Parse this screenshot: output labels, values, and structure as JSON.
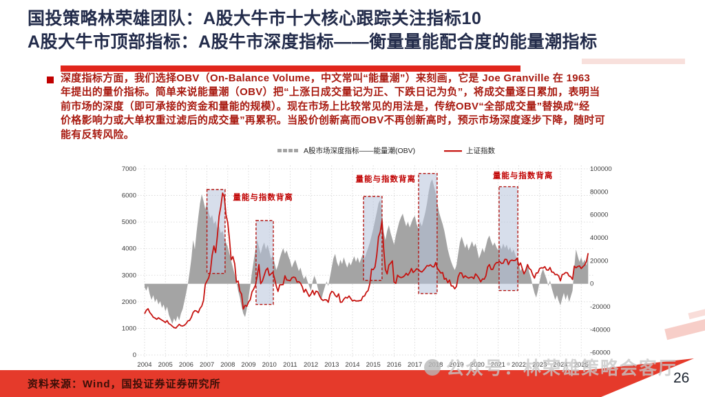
{
  "header": {
    "title_lines": [
      "国投策略林荣雄团队：A股大牛市十大核心跟踪关注指标10",
      "A股大牛市顶部指标：A股牛市深度指标——衡量量能配合度的能量潮指标"
    ]
  },
  "body": {
    "lines": [
      "深度指标方面，我们选择OBV（On-Balance Volume，中文常叫“能量潮”）来刻画，它是 Joe Granville 在 1963",
      "年提出的量价指标。简单来说能量潮（OBV）把“上涨日成交量记为正、下跌日记为负”，将成交量逐日累加，表明当",
      "前市场的深度（即可承接的资金和量能的规模）。现在市场上比较常见的用法是，传统OBV“全部成交量”替换成“经",
      "价格影响力或大单权重过滤后的成交量”再累积。当股价创新高而OBV不再创新高时，预示市场深度逐步下降，随时可",
      "能有反转风险。"
    ]
  },
  "footer": {
    "source": "资料来源：Wind，国投证券证券研究所",
    "page": "26",
    "watermark": "公众号：林荣雄策略会客厅"
  },
  "chart_data": {
    "type": "area+line combo",
    "x_start": 2004,
    "x_step_months": 1,
    "x_ticks": [
      2004,
      2005,
      2006,
      2007,
      2008,
      2009,
      2010,
      2011,
      2012,
      2013,
      2014,
      2015,
      2016,
      2017,
      2018,
      2019,
      2020,
      2021,
      2022,
      2023,
      2024,
      2025
    ],
    "ylim_left": [
      0,
      7000
    ],
    "yticks_left": [
      0,
      1000,
      2000,
      3000,
      4000,
      5000,
      6000,
      7000
    ],
    "ylim_right": [
      -62000,
      100000
    ],
    "yticks_right": [
      -60000,
      -40000,
      -20000,
      0,
      20000,
      40000,
      60000,
      80000,
      100000
    ],
    "grid": "dotted",
    "legend_position": "top-center",
    "colors": {
      "obv": "#a4a4a4",
      "sse": "#c6120f",
      "annotation": "#c00000"
    },
    "series_obv": {
      "name": "A股市场深度指标——能量潮(OBV)",
      "axis": "right",
      "values": [
        -3000,
        -6000,
        -2000,
        -9000,
        -14000,
        -10000,
        -16000,
        -13000,
        -18000,
        -15000,
        -21000,
        -18000,
        -24000,
        -20000,
        -27000,
        -31000,
        -35000,
        -30000,
        -33000,
        -28000,
        -32000,
        -26000,
        -22000,
        -15000,
        -8000,
        0,
        10000,
        22000,
        38000,
        30000,
        45000,
        58000,
        70000,
        78000,
        72000,
        65000,
        70000,
        62000,
        57000,
        60000,
        52000,
        55000,
        48000,
        50000,
        44000,
        46000,
        40000,
        36000,
        32000,
        26000,
        20000,
        14000,
        8000,
        2000,
        -6000,
        -12000,
        -20000,
        -26000,
        -29000,
        -22000,
        -12000,
        -2000,
        10000,
        20000,
        30000,
        38000,
        32000,
        26000,
        32000,
        36000,
        30000,
        34000,
        28000,
        22000,
        25000,
        18000,
        12000,
        16000,
        22000,
        27000,
        31000,
        26000,
        29000,
        24000,
        20000,
        14000,
        18000,
        21000,
        16000,
        11000,
        14000,
        8000,
        4000,
        7000,
        2000,
        -2000,
        -6000,
        2000,
        7000,
        3000,
        -4000,
        -9000,
        -14000,
        -8000,
        -3000,
        2000,
        -2000,
        6000,
        14000,
        22000,
        26000,
        19000,
        15000,
        21000,
        17000,
        23000,
        18000,
        14000,
        19000,
        16000,
        20000,
        24000,
        19000,
        23000,
        18000,
        22000,
        26000,
        22000,
        27000,
        31000,
        36000,
        42000,
        48000,
        55000,
        62000,
        70000,
        73000,
        62000,
        45000,
        38000,
        46000,
        51000,
        44000,
        39000,
        34000,
        42000,
        48000,
        54000,
        58000,
        61000,
        55000,
        50000,
        54000,
        49000,
        53000,
        57000,
        59000,
        52000,
        48000,
        54000,
        50000,
        56000,
        62000,
        70000,
        80000,
        88000,
        91000,
        85000,
        79000,
        70000,
        62000,
        57000,
        52000,
        46000,
        38000,
        30000,
        24000,
        19000,
        15000,
        12000,
        16000,
        26000,
        36000,
        41000,
        36000,
        31000,
        35000,
        29000,
        33000,
        37000,
        32000,
        35000,
        29000,
        22000,
        26000,
        31000,
        27000,
        33000,
        39000,
        42000,
        37000,
        33000,
        36000,
        32000,
        29000,
        34000,
        30000,
        35000,
        31000,
        34000,
        29000,
        32000,
        27000,
        30000,
        25000,
        21000,
        17000,
        11000,
        14000,
        8000,
        12000,
        16000,
        10000,
        5000,
        -2000,
        -8000,
        -12000,
        -6000,
        2000,
        9000,
        13000,
        8000,
        4000,
        -2000,
        3000,
        -4000,
        -9000,
        -14000,
        -10000,
        -15000,
        -19000,
        -13000,
        -8000,
        -14000,
        -9000,
        -16000,
        -11000,
        -6000,
        14000,
        30000,
        24000,
        19000,
        23000,
        18000,
        21000,
        16000,
        25000
      ]
    },
    "series_sse": {
      "name": "上证指数",
      "axis": "left",
      "values": [
        1550,
        1680,
        1740,
        1600,
        1520,
        1420,
        1390,
        1340,
        1400,
        1350,
        1310,
        1270,
        1220,
        1290,
        1180,
        1140,
        1080,
        1030,
        1010,
        1080,
        1150,
        1100,
        1090,
        1120,
        1180,
        1280,
        1300,
        1420,
        1600,
        1670,
        1650,
        1590,
        1750,
        1840,
        2050,
        2650,
        2780,
        2900,
        3150,
        3750,
        4100,
        3850,
        4470,
        5220,
        5580,
        6090,
        5950,
        5260,
        4980,
        4350,
        3580,
        3700,
        3430,
        2740,
        2780,
        2400,
        2290,
        1730,
        1870,
        1830,
        1990,
        2080,
        2370,
        2480,
        2630,
        2960,
        3400,
        2680,
        2780,
        2990,
        3190,
        3270,
        2990,
        3050,
        3110,
        2870,
        2590,
        2390,
        2640,
        2640,
        2650,
        2980,
        2820,
        2810,
        2790,
        2900,
        2930,
        2910,
        2740,
        2760,
        2700,
        2570,
        2360,
        2470,
        2330,
        2200,
        2290,
        2430,
        2260,
        2400,
        2370,
        2220,
        2100,
        2050,
        2080,
        2070,
        1980,
        2270,
        2390,
        2360,
        2240,
        2180,
        2300,
        1980,
        1990,
        2100,
        2170,
        2140,
        2220,
        2120,
        2030,
        2060,
        2030,
        2030,
        2040,
        2050,
        2200,
        2220,
        2360,
        2420,
        2680,
        3230,
        3210,
        3310,
        3750,
        4440,
        4620,
        5050,
        3990,
        3210,
        3050,
        3380,
        3450,
        3540,
        2740,
        2690,
        3000,
        2940,
        2910,
        2930,
        2980,
        3070,
        3000,
        3100,
        3250,
        3100,
        3160,
        3240,
        3220,
        3150,
        3120,
        3190,
        3270,
        3360,
        3350,
        3390,
        3320,
        3310,
        3480,
        3260,
        3170,
        3080,
        3100,
        2850,
        2880,
        2720,
        2820,
        2600,
        2590,
        2490,
        2580,
        2940,
        3090,
        3080,
        2900,
        2980,
        2930,
        2890,
        2920,
        2930,
        2870,
        3050,
        2980,
        2880,
        2750,
        2860,
        2850,
        2980,
        3310,
        3400,
        3220,
        3220,
        3390,
        3470,
        3480,
        3510,
        3440,
        3450,
        3600,
        3590,
        3400,
        3540,
        3570,
        3550,
        3560,
        3640,
        3360,
        3460,
        3250,
        3050,
        3190,
        3400,
        3250,
        3200,
        3020,
        2890,
        3080,
        3090,
        3250,
        3280,
        3270,
        3320,
        3200,
        3190,
        3290,
        3120,
        3110,
        3020,
        3030,
        2970,
        2790,
        3020,
        3040,
        3100,
        3090,
        2970,
        2940,
        2840,
        3340,
        3280,
        3330,
        3350,
        3250,
        3320,
        3380,
        3520,
        3830
      ]
    },
    "divergence_boxes": [
      {
        "x0": 2007.0,
        "x1": 2007.87,
        "v_top": 82000,
        "v_bot": 9000
      },
      {
        "x0": 2009.36,
        "x1": 2010.19,
        "v_top": 55000,
        "v_bot": -18000
      },
      {
        "x0": 2014.53,
        "x1": 2015.42,
        "v_top": 76000,
        "v_bot": 3000
      },
      {
        "x0": 2017.18,
        "x1": 2018.07,
        "v_top": 96000,
        "v_bot": -8500
      },
      {
        "x0": 2021.05,
        "x1": 2021.95,
        "v_top": 84500,
        "v_bot": -6000
      }
    ],
    "annotations": [
      {
        "label": "量能与指数背离",
        "year": 2009.7,
        "value": 73000
      },
      {
        "label": "量能与指数背离",
        "year": 2015.6,
        "value": 89000
      },
      {
        "label": "量能与指数背离",
        "year": 2022.2,
        "value": 92000
      }
    ]
  }
}
